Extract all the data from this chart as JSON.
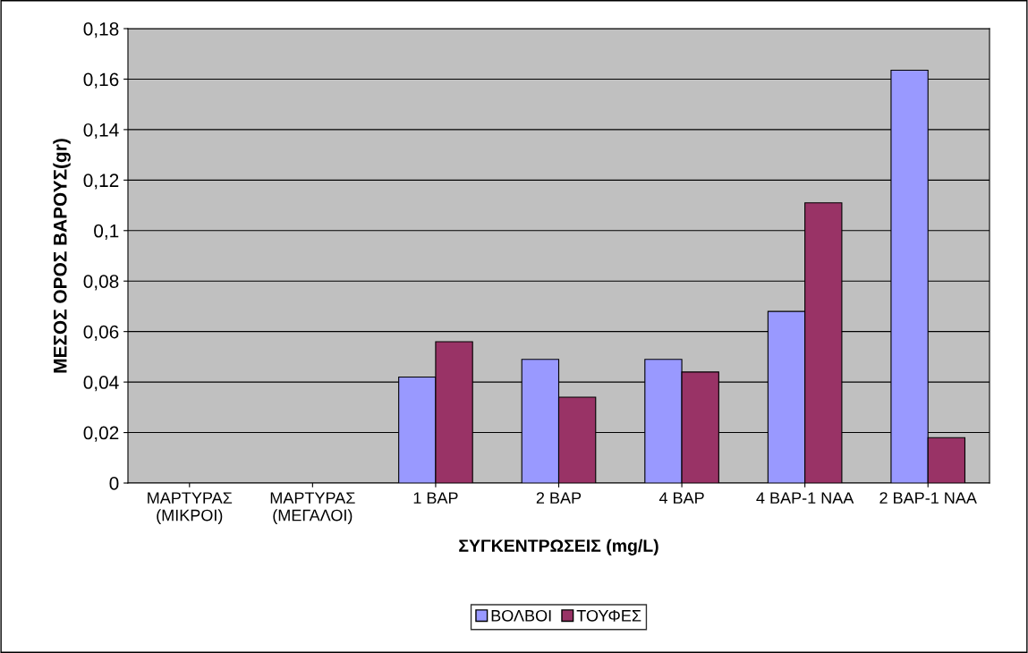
{
  "chart_data": {
    "type": "bar",
    "xlabel": "ΣΥΓΚΕΝΤΡΩΣΕΙΣ (mg/L)",
    "ylabel": "ΜΕΣΟΣ ΟΡΟΣ ΒΑΡΟΥΣ(gr)",
    "categories": [
      "ΜΑΡΤΥΡΑΣ\n(ΜΙΚΡΟΙ)",
      "ΜΑΡΤΥΡΑΣ\n(ΜΕΓΑΛΟΙ)",
      "1 BAP",
      "2 BAP",
      "4 BAP",
      "4 BAP-1 NAA",
      "2 BAP-1 NAA"
    ],
    "series": [
      {
        "name": "ΒΟΛΒΟΙ",
        "color": "#9999ff",
        "values": [
          null,
          null,
          0.042,
          0.049,
          0.049,
          0.068,
          0.1635
        ]
      },
      {
        "name": "ΤΟΥΦΕΣ",
        "color": "#993366",
        "values": [
          null,
          null,
          0.056,
          0.034,
          0.044,
          0.111,
          0.018
        ]
      }
    ],
    "ylim": [
      0,
      0.18
    ],
    "yticks": [
      0,
      {
        "value": 0.02,
        "label": "0,02"
      },
      {
        "value": 0.04,
        "label": "0,04"
      },
      {
        "value": 0.06,
        "label": "0,06"
      },
      {
        "value": 0.08,
        "label": "0,08"
      },
      {
        "value": 0.1,
        "label": "0,1"
      },
      {
        "value": 0.12,
        "label": "0,12"
      },
      {
        "value": 0.14,
        "label": "0,14"
      },
      {
        "value": 0.16,
        "label": "0,16"
      },
      {
        "value": 0.18,
        "label": "0,18"
      }
    ],
    "grid": "y",
    "legend": "bottom"
  }
}
